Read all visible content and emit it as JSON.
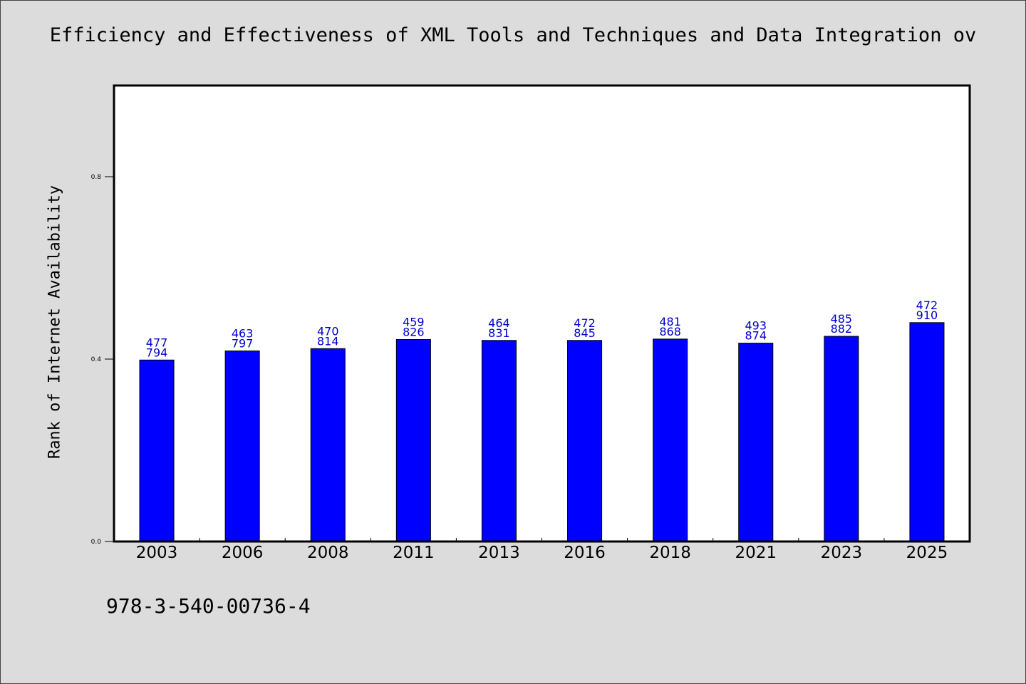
{
  "chart_data": {
    "type": "bar",
    "title": "Efficiency and Effectiveness of XML Tools and Techniques and Data Integration ov",
    "xlabel": "",
    "ylabel": "Rank of Internet Availability",
    "categories": [
      "2003",
      "2006",
      "2008",
      "2011",
      "2013",
      "2016",
      "2018",
      "2021",
      "2023",
      "2025"
    ],
    "values": [
      0.398,
      0.418,
      0.423,
      0.443,
      0.441,
      0.441,
      0.444,
      0.435,
      0.45,
      0.48
    ],
    "data_labels": [
      [
        "477",
        "794"
      ],
      [
        "463",
        "797"
      ],
      [
        "470",
        "814"
      ],
      [
        "459",
        "826"
      ],
      [
        "464",
        "831"
      ],
      [
        "472",
        "845"
      ],
      [
        "481",
        "868"
      ],
      [
        "493",
        "874"
      ],
      [
        "485",
        "882"
      ],
      [
        "472",
        "910"
      ]
    ],
    "ylim": [
      0,
      1.0
    ],
    "yticks": [
      "0.0",
      "0.4",
      "0.8"
    ],
    "grid": false,
    "bar_color": "#0000ff",
    "label_color": "#0000cc"
  },
  "footer_code": "978-3-540-00736-4"
}
